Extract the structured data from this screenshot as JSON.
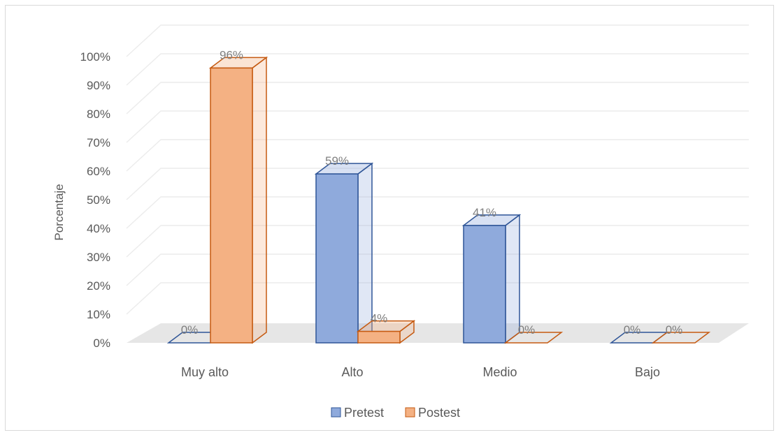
{
  "chart_data": {
    "type": "bar",
    "title": "",
    "xlabel": "",
    "ylabel": "Porcentaje",
    "categories": [
      "Muy alto",
      "Alto",
      "Medio",
      "Bajo"
    ],
    "series": [
      {
        "name": "Pretest",
        "values": [
          0,
          59,
          41,
          0
        ],
        "labels": [
          "0%",
          "59%",
          "41%",
          "0%"
        ],
        "color": "#8faadc",
        "edge": "#2f5597"
      },
      {
        "name": "Postest",
        "values": [
          96,
          4,
          0,
          0
        ],
        "labels": [
          "96%",
          "4%",
          "0%",
          "0%"
        ],
        "color": "#f4b183",
        "edge": "#c55a11"
      }
    ],
    "y_ticks": [
      "0%",
      "10%",
      "20%",
      "30%",
      "40%",
      "50%",
      "60%",
      "70%",
      "80%",
      "90%",
      "100%"
    ],
    "ylim": [
      0,
      100
    ],
    "grid": true,
    "legend_position": "bottom",
    "style": "3d-clustered-column"
  }
}
